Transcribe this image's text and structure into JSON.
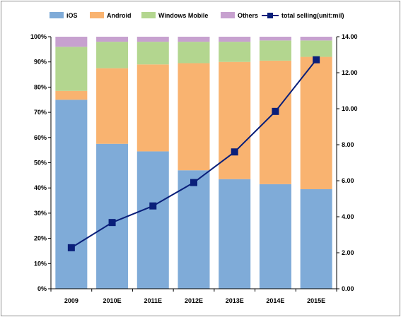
{
  "chart_data": {
    "type": "bar",
    "stacked": true,
    "percent_stacked": true,
    "categories": [
      "2009",
      "2010E",
      "2011E",
      "2012E",
      "2013E",
      "2014E",
      "2015E"
    ],
    "series": [
      {
        "name": "iOS",
        "color": "#7fabd8",
        "values": [
          75.0,
          57.5,
          54.5,
          47.0,
          43.5,
          41.5,
          39.5
        ]
      },
      {
        "name": "Android",
        "color": "#f9b370",
        "values": [
          3.5,
          30.0,
          34.5,
          42.5,
          46.5,
          49.0,
          52.5
        ]
      },
      {
        "name": "Windows Mobile",
        "color": "#b3d68f",
        "values": [
          17.5,
          10.5,
          9.0,
          8.5,
          8.0,
          8.0,
          6.5
        ]
      },
      {
        "name": "Others",
        "color": "#c7a1cf",
        "values": [
          4.0,
          2.0,
          2.0,
          2.0,
          2.0,
          1.5,
          1.5
        ]
      }
    ],
    "line_series": {
      "name": "total selling(unit:mil)",
      "color": "#0a1f7a",
      "axis": "right",
      "values": [
        2.28,
        3.68,
        4.6,
        5.9,
        7.6,
        9.85,
        12.72
      ]
    },
    "y_left": {
      "ylim": [
        0,
        100
      ],
      "ticks": [
        "0%",
        "10%",
        "20%",
        "30%",
        "40%",
        "50%",
        "60%",
        "70%",
        "80%",
        "90%",
        "100%"
      ]
    },
    "y_right": {
      "ylim": [
        0,
        14
      ],
      "ticks": [
        "0.00",
        "2.00",
        "4.00",
        "6.00",
        "8.00",
        "10.00",
        "12.00",
        "14.00"
      ]
    },
    "legend": {
      "placement": "top",
      "items": [
        "iOS",
        "Android",
        "Windows Mobile",
        "Others",
        "total selling(unit:mil)"
      ]
    },
    "grid": false
  }
}
